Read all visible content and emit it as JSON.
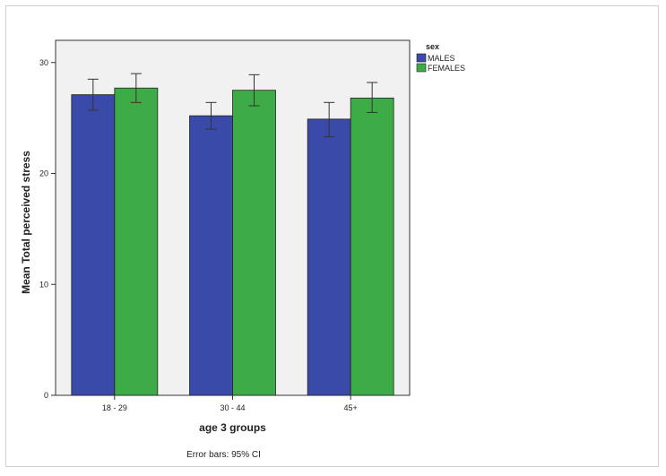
{
  "chart_data": {
    "type": "bar",
    "categories": [
      "18 - 29",
      "30 - 44",
      "45+"
    ],
    "series": [
      {
        "name": "MALES",
        "color": "#3a4aa8",
        "values": [
          27.1,
          25.2,
          24.9
        ],
        "ci_low": [
          25.7,
          24.0,
          23.3
        ],
        "ci_high": [
          28.5,
          26.4,
          26.4
        ]
      },
      {
        "name": "FEMALES",
        "color": "#3dac47",
        "values": [
          27.7,
          27.5,
          26.8
        ],
        "ci_low": [
          26.4,
          26.1,
          25.5
        ],
        "ci_high": [
          29.0,
          28.9,
          28.2
        ]
      }
    ],
    "xlabel": "age 3 groups",
    "ylabel": "Mean Total perceived stress",
    "ylim": [
      0,
      32
    ],
    "yticks": [
      0,
      10,
      20,
      30
    ],
    "legend_title": "sex",
    "legend_position": "top-right outside plot",
    "footnote": "Error bars: 95% CI",
    "plot_background": "#f1f1f1",
    "grid": false
  }
}
